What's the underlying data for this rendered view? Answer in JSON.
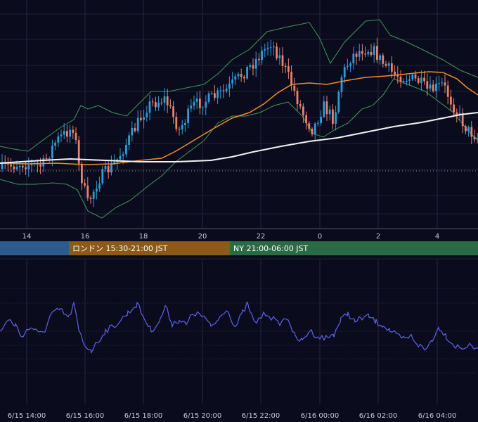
{
  "chart_data": [
    {
      "type": "candlestick",
      "x_ticks": [
        "14",
        "16",
        "18",
        "20",
        "22",
        "0",
        "2",
        "4"
      ],
      "overlays": [
        {
          "kind": "bollinger-bands",
          "color": "#3f9a57"
        },
        {
          "kind": "moving-average",
          "color": "#f08c2a"
        },
        {
          "kind": "moving-average",
          "color": "#f2f2f2"
        }
      ],
      "horizontal_reference": "dotted",
      "colors": {
        "up": "#2e9bd6",
        "down": "#e8826a"
      },
      "grid": true
    },
    {
      "type": "line",
      "color": "#5b63e8",
      "x_ticks": [
        "6/15 14:00",
        "6/15 16:00",
        "6/15 18:00",
        "6/15 20:00",
        "6/15 22:00",
        "6/16 00:00",
        "6/16 02:00",
        "6/16 04:00"
      ],
      "grid": true
    }
  ],
  "sessions": [
    {
      "label": "",
      "color": "#2f5a8c"
    },
    {
      "label": "ロンドン 15:30-21:00 JST",
      "color": "#8a5a16"
    },
    {
      "label": "NY 21:00-06:00 JST",
      "color": "#2a6a44"
    }
  ]
}
